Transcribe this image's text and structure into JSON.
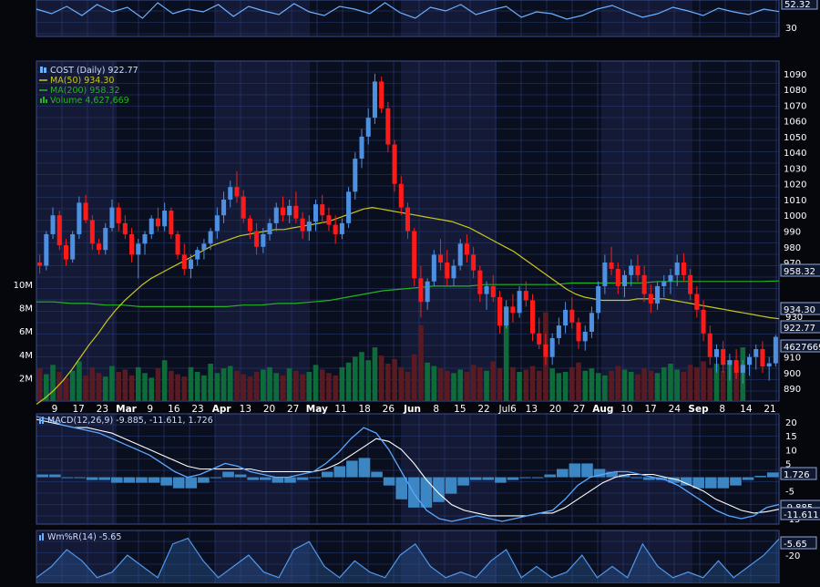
{
  "colors": {
    "background": "#05070d",
    "panel": "#0a0f1f",
    "band_alt": "#141a35",
    "grid": "#2a3c7a",
    "up": "#4d8fe0",
    "down": "#ff1a1a",
    "ma50": "#c8c81e",
    "ma200": "#22b422",
    "vol_up": "#0e6b3a",
    "vol_down": "#5a1a22",
    "macd": "#5aa8ff",
    "signal": "#ffffff",
    "hist": "#3d86c4",
    "axis_text": "#ffffff",
    "legend_text": "#aabbee"
  },
  "chart_data": [
    {
      "type": "line",
      "panel": "RSI",
      "last_value_label": "52.32",
      "y_ticks": [
        "30"
      ],
      "series": [
        {
          "name": "RSI",
          "values": [
            55,
            50,
            58,
            48,
            60,
            52,
            57,
            45,
            62,
            50,
            55,
            52,
            60,
            47,
            58,
            53,
            49,
            61,
            52,
            48,
            58,
            55,
            50,
            62,
            51,
            45,
            57,
            53,
            60,
            49,
            54,
            58,
            46,
            52,
            50,
            44,
            48,
            55,
            59,
            52,
            46,
            50,
            57,
            53,
            48,
            56,
            52,
            49,
            55,
            52.32
          ]
        }
      ]
    },
    {
      "type": "candlestick",
      "panel": "price",
      "legend": [
        {
          "label": "COST (Daily) 922.77",
          "icon": "candle-icon"
        },
        {
          "label": "MA(50) 934.30",
          "icon": "line-icon-yellow"
        },
        {
          "label": "MA(200) 958.32",
          "icon": "line-icon-green"
        },
        {
          "label": "Volume 4,627,669",
          "icon": "bars-icon-green"
        }
      ],
      "x_labels": [
        "9",
        "17",
        "23",
        "Mar",
        "9",
        "16",
        "23",
        "Apr",
        "13",
        "20",
        "27",
        "May",
        "11",
        "18",
        "26",
        "Jun",
        "8",
        "15",
        "22",
        "Jul6",
        "13",
        "20",
        "27",
        "Aug",
        "10",
        "17",
        "24",
        "Sep",
        "8",
        "14",
        "21"
      ],
      "y_ticks": [
        890,
        900,
        910,
        920,
        930,
        940,
        950,
        960,
        970,
        980,
        990,
        1000,
        1010,
        1020,
        1030,
        1040,
        1050,
        1060,
        1070,
        1080,
        1090
      ],
      "ylim": [
        882,
        1098
      ],
      "volume_ticks": [
        "2M",
        "4M",
        "6M",
        "8M",
        "10M"
      ],
      "badges": {
        "ma200": "958.32",
        "ma50": "934.30",
        "close": "922.77",
        "volume": "4627669"
      },
      "candles": [
        [
          970,
          975,
          963,
          968
        ],
        [
          968,
          990,
          965,
          988
        ],
        [
          988,
          1005,
          985,
          1000
        ],
        [
          1000,
          1003,
          978,
          981
        ],
        [
          981,
          985,
          968,
          972
        ],
        [
          972,
          990,
          970,
          988
        ],
        [
          988,
          1012,
          985,
          1008
        ],
        [
          1008,
          1013,
          995,
          997
        ],
        [
          997,
          1000,
          978,
          982
        ],
        [
          982,
          985,
          975,
          978
        ],
        [
          978,
          995,
          975,
          992
        ],
        [
          992,
          1010,
          990,
          1005
        ],
        [
          1005,
          1008,
          990,
          995
        ],
        [
          995,
          1000,
          985,
          988
        ],
        [
          988,
          992,
          970,
          975
        ],
        [
          975,
          985,
          960,
          982
        ],
        [
          982,
          990,
          975,
          988
        ],
        [
          988,
          1000,
          985,
          998
        ],
        [
          998,
          1005,
          990,
          993
        ],
        [
          993,
          1008,
          990,
          1003
        ],
        [
          1003,
          1005,
          985,
          988
        ],
        [
          988,
          990,
          972,
          975
        ],
        [
          975,
          982,
          962,
          966
        ],
        [
          966,
          975,
          960,
          972
        ],
        [
          972,
          980,
          968,
          978
        ],
        [
          978,
          985,
          972,
          982
        ],
        [
          982,
          992,
          978,
          990
        ],
        [
          990,
          1005,
          985,
          1000
        ],
        [
          1000,
          1015,
          995,
          1010
        ],
        [
          1010,
          1022,
          1005,
          1018
        ],
        [
          1018,
          1028,
          1008,
          1012
        ],
        [
          1012,
          1016,
          995,
          998
        ],
        [
          998,
          1000,
          985,
          990
        ],
        [
          990,
          995,
          975,
          980
        ],
        [
          980,
          992,
          976,
          988
        ],
        [
          988,
          998,
          984,
          995
        ],
        [
          995,
          1008,
          990,
          1005
        ],
        [
          1005,
          1012,
          996,
          1000
        ],
        [
          1000,
          1010,
          995,
          1006
        ],
        [
          1006,
          1015,
          995,
          998
        ],
        [
          998,
          1002,
          985,
          990
        ],
        [
          990,
          1000,
          984,
          996
        ],
        [
          996,
          1010,
          990,
          1007
        ],
        [
          1007,
          1013,
          995,
          1000
        ],
        [
          1000,
          1005,
          990,
          994
        ],
        [
          994,
          1000,
          982,
          988
        ],
        [
          988,
          998,
          985,
          995
        ],
        [
          995,
          1018,
          992,
          1015
        ],
        [
          1015,
          1040,
          1010,
          1036
        ],
        [
          1036,
          1055,
          1030,
          1050
        ],
        [
          1050,
          1068,
          1045,
          1062
        ],
        [
          1062,
          1090,
          1058,
          1085
        ],
        [
          1085,
          1088,
          1065,
          1068
        ],
        [
          1068,
          1072,
          1040,
          1045
        ],
        [
          1045,
          1048,
          1015,
          1020
        ],
        [
          1020,
          1025,
          1000,
          1005
        ],
        [
          1005,
          1008,
          985,
          990
        ],
        [
          990,
          992,
          955,
          960
        ],
        [
          960,
          968,
          935,
          945
        ],
        [
          945,
          960,
          940,
          958
        ],
        [
          958,
          978,
          955,
          975
        ],
        [
          975,
          985,
          965,
          970
        ],
        [
          970,
          978,
          955,
          960
        ],
        [
          960,
          972,
          955,
          968
        ],
        [
          968,
          985,
          965,
          982
        ],
        [
          982,
          988,
          970,
          975
        ],
        [
          975,
          980,
          960,
          965
        ],
        [
          965,
          968,
          945,
          950
        ],
        [
          950,
          958,
          940,
          955
        ],
        [
          955,
          962,
          945,
          948
        ],
        [
          948,
          952,
          925,
          930
        ],
        [
          930,
          946,
          928,
          942
        ],
        [
          942,
          950,
          932,
          938
        ],
        [
          938,
          955,
          935,
          952
        ],
        [
          952,
          958,
          942,
          946
        ],
        [
          946,
          950,
          920,
          925
        ],
        [
          925,
          935,
          915,
          918
        ],
        [
          918,
          925,
          905,
          910
        ],
        [
          910,
          925,
          905,
          922
        ],
        [
          922,
          935,
          918,
          930
        ],
        [
          930,
          945,
          925,
          940
        ],
        [
          940,
          948,
          928,
          932
        ],
        [
          932,
          935,
          915,
          920
        ],
        [
          920,
          930,
          914,
          926
        ],
        [
          926,
          942,
          922,
          938
        ],
        [
          938,
          958,
          934,
          955
        ],
        [
          955,
          975,
          950,
          970
        ],
        [
          970,
          980,
          962,
          966
        ],
        [
          966,
          970,
          950,
          955
        ],
        [
          955,
          965,
          948,
          962
        ],
        [
          962,
          972,
          955,
          968
        ],
        [
          968,
          975,
          958,
          962
        ],
        [
          962,
          968,
          945,
          950
        ],
        [
          950,
          956,
          938,
          944
        ],
        [
          944,
          958,
          940,
          955
        ],
        [
          955,
          962,
          948,
          958
        ],
        [
          958,
          966,
          950,
          962
        ],
        [
          962,
          975,
          955,
          970
        ],
        [
          970,
          976,
          958,
          962
        ],
        [
          962,
          966,
          946,
          950
        ],
        [
          950,
          955,
          935,
          940
        ],
        [
          940,
          946,
          920,
          925
        ],
        [
          925,
          930,
          905,
          910
        ],
        [
          910,
          918,
          900,
          915
        ],
        [
          915,
          920,
          900,
          905
        ],
        [
          905,
          912,
          895,
          908
        ],
        [
          908,
          915,
          896,
          900
        ],
        [
          900,
          908,
          893,
          905
        ],
        [
          905,
          912,
          898,
          910
        ],
        [
          910,
          918,
          902,
          915
        ],
        [
          915,
          920,
          900,
          904
        ],
        [
          904,
          910,
          895,
          906
        ],
        [
          906,
          924,
          904,
          922.77
        ]
      ],
      "volume": [
        2.8,
        2.3,
        3.1,
        2.5,
        2.0,
        2.6,
        3.4,
        2.2,
        2.9,
        2.4,
        2.1,
        3.0,
        2.5,
        2.7,
        2.2,
        2.9,
        2.4,
        2.0,
        2.8,
        3.5,
        2.6,
        2.3,
        2.1,
        2.9,
        2.5,
        2.2,
        3.2,
        2.4,
        2.8,
        3.0,
        2.6,
        2.3,
        2.1,
        2.5,
        2.7,
        2.9,
        2.4,
        2.2,
        2.8,
        2.6,
        2.3,
        2.5,
        3.1,
        2.7,
        2.4,
        2.2,
        2.9,
        3.3,
        3.8,
        4.2,
        3.5,
        4.6,
        3.9,
        3.2,
        3.6,
        2.9,
        2.5,
        4.0,
        6.5,
        3.3,
        3.0,
        2.8,
        2.6,
        2.4,
        2.7,
        2.5,
        3.1,
        2.9,
        2.6,
        3.4,
        2.8,
        8.1,
        2.9,
        2.5,
        2.7,
        3.0,
        2.6,
        7.6,
        2.8,
        2.4,
        2.5,
        2.9,
        3.3,
        2.6,
        2.8,
        2.4,
        2.2,
        2.6,
        3.0,
        2.7,
        2.5,
        2.3,
        2.8,
        2.6,
        2.4,
        2.9,
        3.2,
        2.7,
        2.5,
        3.1,
        2.9,
        3.4,
        2.8,
        3.2,
        2.6,
        3.5,
        3.0,
        4.6
      ],
      "ma50": [
        880,
        884,
        889,
        895,
        902,
        910,
        918,
        925,
        933,
        940,
        946,
        951,
        956,
        960,
        963,
        966,
        969,
        972,
        975,
        978,
        981,
        983,
        985,
        987,
        988,
        989,
        990,
        991,
        991,
        992,
        993,
        994,
        995,
        996,
        998,
        1000,
        1002,
        1004,
        1005,
        1004,
        1003,
        1002,
        1001,
        1000,
        999,
        998,
        997,
        996,
        994,
        992,
        989,
        986,
        983,
        980,
        977,
        973,
        969,
        965,
        961,
        957,
        953,
        950,
        948,
        947,
        946,
        946,
        946,
        946,
        947,
        947,
        947,
        947,
        946,
        945,
        944,
        943,
        942,
        941,
        940,
        939,
        938,
        937,
        936,
        935,
        934.3
      ],
      "ma200": [
        945,
        945,
        944,
        944,
        943,
        943,
        942,
        942,
        942,
        942,
        942,
        942,
        943,
        943,
        944,
        944,
        945,
        946,
        948,
        950,
        952,
        953,
        954,
        955,
        955,
        955,
        956,
        956,
        956,
        956,
        956,
        957,
        957,
        957,
        957,
        957,
        958,
        958,
        958,
        958,
        958,
        958,
        958,
        958.32
      ]
    },
    {
      "type": "line",
      "panel": "MACD",
      "legend_label": "MACD(12,26,9) -9.885, -11.611, 1.726",
      "y_ticks": [
        "20",
        "15",
        "10",
        "5",
        "-5",
        "-10",
        "-15"
      ],
      "ylim": [
        -17,
        23
      ],
      "badges": {
        "hist": "1.726",
        "macd": "-9.885",
        "signal": "-11.611"
      },
      "series": [
        {
          "name": "MACD",
          "values": [
            22,
            21,
            19,
            18,
            17,
            16,
            14,
            12,
            10,
            8,
            5,
            2,
            0,
            1,
            3,
            5,
            4,
            2,
            1,
            0,
            0,
            1,
            2,
            5,
            9,
            14,
            18,
            16,
            10,
            2,
            -6,
            -12,
            -15,
            -16,
            -15,
            -14,
            -15,
            -16,
            -15,
            -14,
            -13,
            -12,
            -8,
            -3,
            0,
            1,
            2,
            2,
            1,
            0,
            -1,
            -3,
            -6,
            -9,
            -12,
            -14,
            -15,
            -14,
            -11,
            -9.885
          ]
        },
        {
          "name": "Signal",
          "values": [
            21,
            20,
            19,
            18,
            18,
            17,
            16,
            14,
            12,
            10,
            8,
            6,
            4,
            3,
            3,
            3,
            3,
            3,
            2,
            2,
            2,
            2,
            2,
            3,
            5,
            8,
            11,
            14,
            13,
            10,
            5,
            -1,
            -6,
            -10,
            -12,
            -13,
            -14,
            -14,
            -14,
            -14,
            -13,
            -13,
            -11,
            -8,
            -5,
            -2,
            0,
            1,
            1,
            1,
            0,
            -1,
            -3,
            -5,
            -8,
            -10,
            -12,
            -13,
            -12.5,
            -11.611
          ]
        }
      ],
      "histogram": [
        1,
        1,
        0,
        0,
        -1,
        -1,
        -2,
        -2,
        -2,
        -2,
        -3,
        -4,
        -4,
        -2,
        0,
        2,
        1,
        -1,
        -1,
        -2,
        -2,
        -1,
        0,
        2,
        4,
        6,
        7,
        2,
        -3,
        -8,
        -11,
        -11,
        -9,
        -6,
        -3,
        -1,
        -1,
        -2,
        -1,
        0,
        0,
        1,
        3,
        5,
        5,
        3,
        2,
        1,
        0,
        -1,
        -1,
        -2,
        -3,
        -4,
        -4,
        -4,
        -3,
        -1,
        0.5,
        1.726
      ]
    },
    {
      "type": "line",
      "panel": "Williams %R",
      "legend_label": "Wm%R(14) -5.65",
      "y_ticks": [
        "-20"
      ],
      "ylim": [
        -45,
        2
      ],
      "badges": {
        "value": "-5.65"
      },
      "series": [
        {
          "name": "Williams %R",
          "values": [
            -40,
            -30,
            -15,
            -25,
            -40,
            -35,
            -20,
            -30,
            -40,
            -10,
            -5,
            -25,
            -40,
            -30,
            -20,
            -35,
            -40,
            -15,
            -8,
            -30,
            -40,
            -25,
            -35,
            -40,
            -20,
            -10,
            -30,
            -40,
            -35,
            -40,
            -25,
            -15,
            -40,
            -30,
            -40,
            -35,
            -20,
            -40,
            -30,
            -40,
            -10,
            -30,
            -40,
            -35,
            -40,
            -25,
            -40,
            -30,
            -20,
            -5.65
          ]
        }
      ]
    }
  ]
}
